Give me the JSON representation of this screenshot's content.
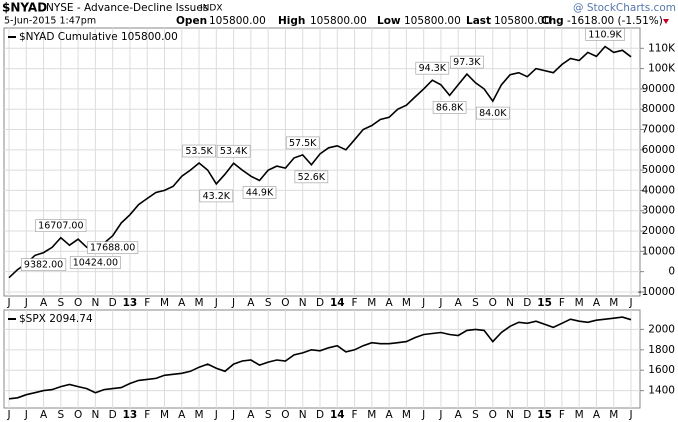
{
  "header": {
    "symbol": "$NYAD",
    "name": "NYSE - Advance-Decline Issues",
    "exchange": "INDX",
    "watermark": "@ StockCharts.com",
    "date": "5-Jun-2015 1:47pm",
    "quote": [
      {
        "label": "Open",
        "value": "105800.00"
      },
      {
        "label": "High",
        "value": "105800.00"
      },
      {
        "label": "Low",
        "value": "105800.00"
      },
      {
        "label": "Last",
        "value": "105800.00"
      },
      {
        "label": "Chg",
        "value": "-1618.00 (-1.51%)"
      }
    ]
  },
  "chart_data": [
    {
      "type": "line",
      "grid": true,
      "categories": [
        "J",
        null,
        "J",
        null,
        "A",
        null,
        "S",
        null,
        "O",
        null,
        "N",
        null,
        "D",
        null,
        "13",
        null,
        "F",
        null,
        "M",
        null,
        "A",
        null,
        "M",
        null,
        "J",
        null,
        "J",
        null,
        "A",
        null,
        "S",
        null,
        "O",
        null,
        "N",
        null,
        "D",
        null,
        "14",
        null,
        "F",
        null,
        "M",
        null,
        "A",
        null,
        "M",
        null,
        "J",
        null,
        "J",
        null,
        "A",
        null,
        "S",
        null,
        "O",
        null,
        "N",
        null,
        "D",
        null,
        "15",
        null,
        "F",
        null,
        "M",
        null,
        "A",
        null,
        "M",
        null,
        "J"
      ],
      "series": [
        {
          "name": "$NYAD Cumulative 105800.00",
          "color": "#000000",
          "values": [
            -3000,
            1000,
            4000,
            8000,
            9382,
            12000,
            16707,
            13000,
            16000,
            12000,
            10424,
            14000,
            17688,
            24000,
            28000,
            33000,
            36000,
            39000,
            40000,
            42000,
            47000,
            50000,
            53500,
            50000,
            43200,
            48000,
            53400,
            50000,
            47000,
            44900,
            50000,
            52000,
            51000,
            56000,
            57500,
            52600,
            58000,
            61000,
            62000,
            60000,
            65000,
            70000,
            72000,
            75000,
            76000,
            80000,
            82000,
            86000,
            90000,
            94300,
            92000,
            86800,
            92000,
            97300,
            93000,
            90000,
            84000,
            92000,
            97000,
            98000,
            96000,
            100000,
            99000,
            98000,
            102000,
            105000,
            104000,
            108000,
            106000,
            110900,
            108000,
            109000,
            105800
          ],
          "value_labels": [
            null,
            null,
            null,
            null,
            "9382.00",
            null,
            "16707.00",
            null,
            null,
            null,
            "10424.00",
            null,
            "17688.00",
            null,
            null,
            null,
            null,
            null,
            null,
            null,
            null,
            null,
            "53.5K",
            null,
            "43.2K",
            null,
            "53.4K",
            null,
            null,
            "44.9K",
            null,
            null,
            null,
            null,
            "57.5K",
            "52.6K",
            null,
            null,
            null,
            null,
            null,
            null,
            null,
            null,
            null,
            null,
            null,
            null,
            null,
            "94.3K",
            null,
            "86.8K",
            null,
            "97.3K",
            null,
            null,
            "84.0K",
            null,
            null,
            null,
            null,
            null,
            null,
            null,
            null,
            null,
            null,
            null,
            null,
            "110.9K",
            null,
            null,
            null
          ]
        }
      ],
      "ylim": [
        -12000,
        120000
      ],
      "yticks": [
        -10000,
        0,
        10000,
        20000,
        30000,
        40000,
        50000,
        60000,
        70000,
        80000,
        90000,
        {
          "value": 100000,
          "label": "100K"
        },
        {
          "value": 110000,
          "label": "110K"
        }
      ]
    },
    {
      "type": "line",
      "grid": true,
      "categories": [
        "J",
        null,
        "J",
        null,
        "A",
        null,
        "S",
        null,
        "O",
        null,
        "N",
        null,
        "D",
        null,
        "13",
        null,
        "F",
        null,
        "M",
        null,
        "A",
        null,
        "M",
        null,
        "J",
        null,
        "J",
        null,
        "A",
        null,
        "S",
        null,
        "O",
        null,
        "N",
        null,
        "D",
        null,
        "14",
        null,
        "F",
        null,
        "M",
        null,
        "A",
        null,
        "M",
        null,
        "J",
        null,
        "J",
        null,
        "A",
        null,
        "S",
        null,
        "O",
        null,
        "N",
        null,
        "D",
        null,
        "15",
        null,
        "F",
        null,
        "M",
        null,
        "A",
        null,
        "M",
        null,
        "J"
      ],
      "series": [
        {
          "name": "$SPX 2094.74",
          "color": "#000000",
          "values": [
            1320,
            1330,
            1360,
            1380,
            1400,
            1410,
            1440,
            1460,
            1440,
            1420,
            1380,
            1410,
            1420,
            1430,
            1470,
            1500,
            1510,
            1520,
            1550,
            1560,
            1570,
            1590,
            1630,
            1660,
            1620,
            1590,
            1660,
            1690,
            1700,
            1650,
            1680,
            1700,
            1690,
            1750,
            1770,
            1800,
            1790,
            1820,
            1840,
            1780,
            1800,
            1840,
            1870,
            1860,
            1860,
            1870,
            1880,
            1920,
            1950,
            1960,
            1970,
            1950,
            1940,
            1990,
            2000,
            1990,
            1880,
            1970,
            2030,
            2070,
            2060,
            2080,
            2050,
            2020,
            2060,
            2100,
            2080,
            2070,
            2090,
            2100,
            2110,
            2120,
            2094.74
          ]
        }
      ],
      "ylim": [
        1230,
        2190
      ],
      "yticks": [
        1400,
        1600,
        1800,
        2000
      ]
    }
  ]
}
